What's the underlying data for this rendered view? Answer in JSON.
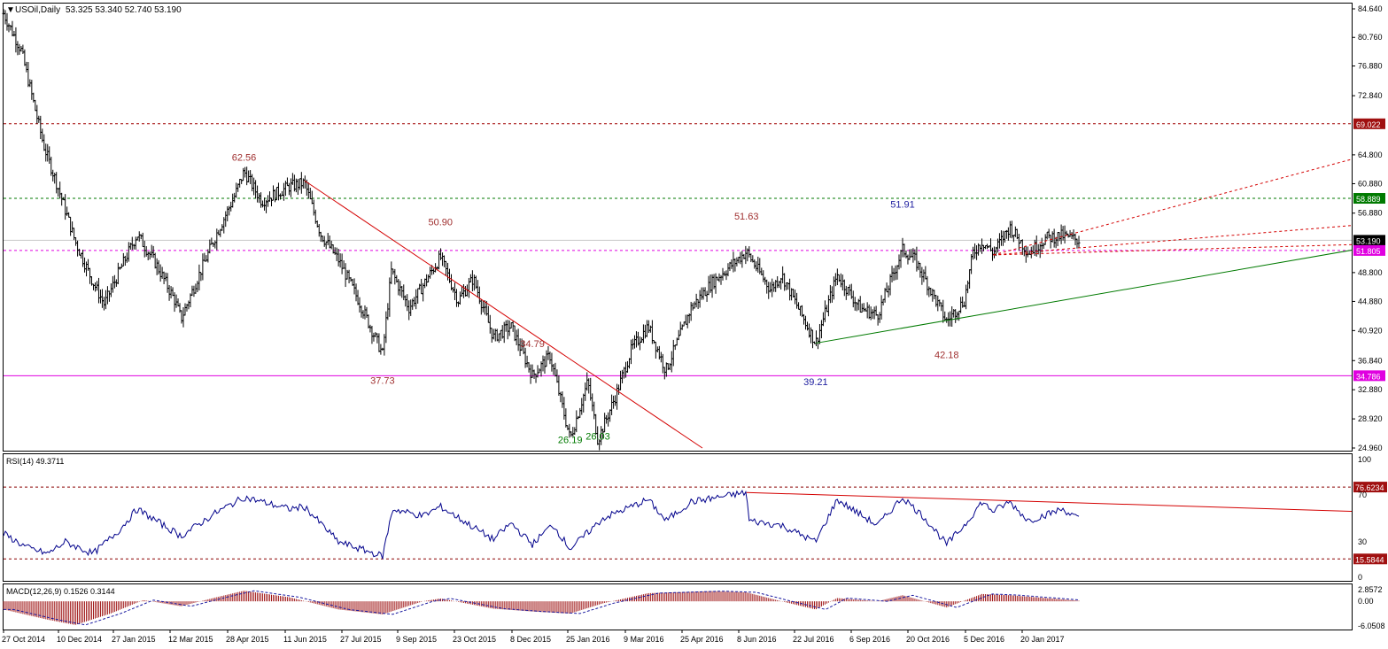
{
  "header": {
    "symbol": "USOil,Daily",
    "ohlc": "53.325 53.340 52.740 53.190"
  },
  "colors": {
    "candle": "#000000",
    "redline": "#d40000",
    "greenline": "#007a00",
    "magenta": "#e000e0",
    "rsi": "#00008b",
    "macd_hist": "#a01818",
    "grid": "#000000"
  },
  "chart_data": [
    {
      "type": "candlestick",
      "title": "USOil,Daily",
      "ohlc_last": {
        "open": 53.325,
        "high": 53.34,
        "low": 52.74,
        "close": 53.19
      },
      "y_ticks": [
        "84.640",
        "80.760",
        "76.880",
        "72.840",
        "69.022",
        "64.800",
        "60.880",
        "58.889",
        "56.880",
        "53.190",
        "51.805",
        "48.800",
        "44.880",
        "40.920",
        "36.840",
        "34.786",
        "32.880",
        "28.920",
        "24.960"
      ],
      "ylim": [
        24.96,
        84.64
      ],
      "x_ticks": [
        "27 Oct 2014",
        "10 Dec 2014",
        "27 Jan 2015",
        "12 Mar 2015",
        "28 Apr 2015",
        "11 Jun 2015",
        "27 Jul 2015",
        "9 Sep 2015",
        "23 Oct 2015",
        "8 Dec 2015",
        "25 Jan 2016",
        "9 Mar 2016",
        "25 Apr 2016",
        "8 Jun 2016",
        "22 Jul 2016",
        "6 Sep 2016",
        "20 Oct 2016",
        "5 Dec 2016",
        "20 Jan 2017"
      ],
      "swing_points": [
        {
          "date": "2014-10-27",
          "value": 84.0
        },
        {
          "date": "2014-11-10",
          "value": 79.0
        },
        {
          "date": "2014-11-28",
          "value": 66.0
        },
        {
          "date": "2014-12-10",
          "value": 60.0
        },
        {
          "date": "2014-12-23",
          "value": 53.0
        },
        {
          "date": "2015-01-06",
          "value": 47.5
        },
        {
          "date": "2015-01-15",
          "value": 44.5
        },
        {
          "date": "2015-01-27",
          "value": 49.0
        },
        {
          "date": "2015-02-10",
          "value": 54.0
        },
        {
          "date": "2015-02-25",
          "value": 50.0
        },
        {
          "date": "2015-03-12",
          "value": 45.0
        },
        {
          "date": "2015-03-17",
          "value": 42.5
        },
        {
          "date": "2015-03-30",
          "value": 48.0
        },
        {
          "date": "2015-04-14",
          "value": 54.0
        },
        {
          "date": "2015-04-28",
          "value": 59.0
        },
        {
          "date": "2015-05-06",
          "value": 62.56
        },
        {
          "date": "2015-05-20",
          "value": 58.5
        },
        {
          "date": "2015-06-11",
          "value": 60.5
        },
        {
          "date": "2015-06-23",
          "value": 61.0
        },
        {
          "date": "2015-07-06",
          "value": 54.0
        },
        {
          "date": "2015-07-20",
          "value": 50.5
        },
        {
          "date": "2015-08-05",
          "value": 45.0
        },
        {
          "date": "2015-08-24",
          "value": 37.73
        },
        {
          "date": "2015-08-31",
          "value": 49.0
        },
        {
          "date": "2015-09-14",
          "value": 44.0
        },
        {
          "date": "2015-10-09",
          "value": 50.9
        },
        {
          "date": "2015-10-23",
          "value": 45.0
        },
        {
          "date": "2015-11-04",
          "value": 48.0
        },
        {
          "date": "2015-11-20",
          "value": 40.0
        },
        {
          "date": "2015-12-04",
          "value": 41.5
        },
        {
          "date": "2015-12-21",
          "value": 34.79
        },
        {
          "date": "2016-01-04",
          "value": 37.5
        },
        {
          "date": "2016-01-20",
          "value": 26.19
        },
        {
          "date": "2016-02-03",
          "value": 34.0
        },
        {
          "date": "2016-02-11",
          "value": 26.03
        },
        {
          "date": "2016-02-25",
          "value": 32.0
        },
        {
          "date": "2016-03-09",
          "value": 38.5
        },
        {
          "date": "2016-03-22",
          "value": 41.5
        },
        {
          "date": "2016-04-05",
          "value": 35.5
        },
        {
          "date": "2016-04-25",
          "value": 44.0
        },
        {
          "date": "2016-05-12",
          "value": 47.5
        },
        {
          "date": "2016-06-08",
          "value": 51.63
        },
        {
          "date": "2016-06-27",
          "value": 46.5
        },
        {
          "date": "2016-07-06",
          "value": 48.5
        },
        {
          "date": "2016-08-02",
          "value": 39.21
        },
        {
          "date": "2016-08-19",
          "value": 48.5
        },
        {
          "date": "2016-09-06",
          "value": 44.0
        },
        {
          "date": "2016-09-20",
          "value": 43.0
        },
        {
          "date": "2016-10-10",
          "value": 51.91
        },
        {
          "date": "2016-10-20",
          "value": 50.5
        },
        {
          "date": "2016-11-14",
          "value": 42.18
        },
        {
          "date": "2016-11-28",
          "value": 45.0
        },
        {
          "date": "2016-12-05",
          "value": 51.5
        },
        {
          "date": "2016-12-12",
          "value": 53.0
        },
        {
          "date": "2016-12-21",
          "value": 51.5
        },
        {
          "date": "2017-01-03",
          "value": 55.0
        },
        {
          "date": "2017-01-18",
          "value": 51.5
        },
        {
          "date": "2017-02-01",
          "value": 53.5
        },
        {
          "date": "2017-02-14",
          "value": 53.8
        },
        {
          "date": "2017-02-27",
          "value": 53.19
        }
      ],
      "annotations": [
        "62.56",
        "50.90",
        "51.63",
        "51.91",
        "37.73",
        "34.79",
        "39.21",
        "42.18",
        "26.19",
        "26.03"
      ],
      "hlines": [
        69.022,
        58.889,
        51.805,
        34.786
      ]
    },
    {
      "type": "line",
      "title": "RSI(14) 49.3711",
      "y_ticks": [
        "100",
        "76.6234",
        "70",
        "30",
        "15.5844",
        "0"
      ],
      "ylim": [
        0,
        100
      ],
      "swing_points": [
        {
          "date": "2014-10-27",
          "value": 37
        },
        {
          "date": "2014-11-15",
          "value": 25
        },
        {
          "date": "2014-12-01",
          "value": 20
        },
        {
          "date": "2014-12-15",
          "value": 30
        },
        {
          "date": "2015-01-06",
          "value": 20
        },
        {
          "date": "2015-01-27",
          "value": 40
        },
        {
          "date": "2015-02-10",
          "value": 58
        },
        {
          "date": "2015-03-17",
          "value": 35
        },
        {
          "date": "2015-04-14",
          "value": 55
        },
        {
          "date": "2015-05-06",
          "value": 68
        },
        {
          "date": "2015-06-11",
          "value": 58
        },
        {
          "date": "2015-06-23",
          "value": 60
        },
        {
          "date": "2015-07-20",
          "value": 30
        },
        {
          "date": "2015-08-24",
          "value": 18
        },
        {
          "date": "2015-09-01",
          "value": 58
        },
        {
          "date": "2015-09-25",
          "value": 52
        },
        {
          "date": "2015-10-09",
          "value": 60
        },
        {
          "date": "2015-11-20",
          "value": 32
        },
        {
          "date": "2015-12-04",
          "value": 46
        },
        {
          "date": "2015-12-21",
          "value": 28
        },
        {
          "date": "2016-01-06",
          "value": 45
        },
        {
          "date": "2016-01-20",
          "value": 24
        },
        {
          "date": "2016-02-15",
          "value": 50
        },
        {
          "date": "2016-03-22",
          "value": 66
        },
        {
          "date": "2016-04-05",
          "value": 48
        },
        {
          "date": "2016-04-25",
          "value": 64
        },
        {
          "date": "2016-06-08",
          "value": 72
        },
        {
          "date": "2016-06-10",
          "value": 48
        },
        {
          "date": "2016-07-06",
          "value": 44
        },
        {
          "date": "2016-08-02",
          "value": 30
        },
        {
          "date": "2016-08-19",
          "value": 66
        },
        {
          "date": "2016-09-20",
          "value": 44
        },
        {
          "date": "2016-10-10",
          "value": 68
        },
        {
          "date": "2016-10-28",
          "value": 50
        },
        {
          "date": "2016-11-14",
          "value": 28
        },
        {
          "date": "2016-11-28",
          "value": 44
        },
        {
          "date": "2016-12-12",
          "value": 64
        },
        {
          "date": "2016-12-21",
          "value": 56
        },
        {
          "date": "2017-01-03",
          "value": 64
        },
        {
          "date": "2017-01-18",
          "value": 48
        },
        {
          "date": "2017-02-14",
          "value": 58
        },
        {
          "date": "2017-02-27",
          "value": 49.37
        }
      ],
      "hlines": [
        76.6234,
        15.5844
      ]
    },
    {
      "type": "bar",
      "title": "MACD(12,26,9) 0.1526 0.3144",
      "y_ticks": [
        "2.8572",
        "0.00",
        "-6.0508"
      ],
      "ylim": [
        -6.0508,
        2.8572
      ],
      "swing_points": [
        {
          "date": "2014-10-27",
          "value": -2.0
        },
        {
          "date": "2014-12-01",
          "value": -4.5
        },
        {
          "date": "2014-12-23",
          "value": -5.8
        },
        {
          "date": "2015-01-20",
          "value": -3.0
        },
        {
          "date": "2015-02-15",
          "value": 0.3
        },
        {
          "date": "2015-03-17",
          "value": -1.2
        },
        {
          "date": "2015-04-14",
          "value": 1.0
        },
        {
          "date": "2015-05-06",
          "value": 2.6
        },
        {
          "date": "2015-06-11",
          "value": 1.0
        },
        {
          "date": "2015-07-20",
          "value": -2.0
        },
        {
          "date": "2015-08-24",
          "value": -3.2
        },
        {
          "date": "2015-09-25",
          "value": 0.0
        },
        {
          "date": "2015-10-09",
          "value": 0.7
        },
        {
          "date": "2015-11-20",
          "value": -1.8
        },
        {
          "date": "2015-12-21",
          "value": -2.5
        },
        {
          "date": "2016-01-20",
          "value": -3.0
        },
        {
          "date": "2016-02-15",
          "value": -0.5
        },
        {
          "date": "2016-03-22",
          "value": 2.0
        },
        {
          "date": "2016-05-12",
          "value": 2.5
        },
        {
          "date": "2016-06-08",
          "value": 2.2
        },
        {
          "date": "2016-07-06",
          "value": 0.0
        },
        {
          "date": "2016-08-02",
          "value": -2.0
        },
        {
          "date": "2016-08-19",
          "value": 0.8
        },
        {
          "date": "2016-09-20",
          "value": 0.0
        },
        {
          "date": "2016-10-10",
          "value": 1.5
        },
        {
          "date": "2016-11-14",
          "value": -1.5
        },
        {
          "date": "2016-12-12",
          "value": 1.8
        },
        {
          "date": "2017-01-03",
          "value": 1.5
        },
        {
          "date": "2017-02-27",
          "value": 0.15
        }
      ]
    }
  ]
}
